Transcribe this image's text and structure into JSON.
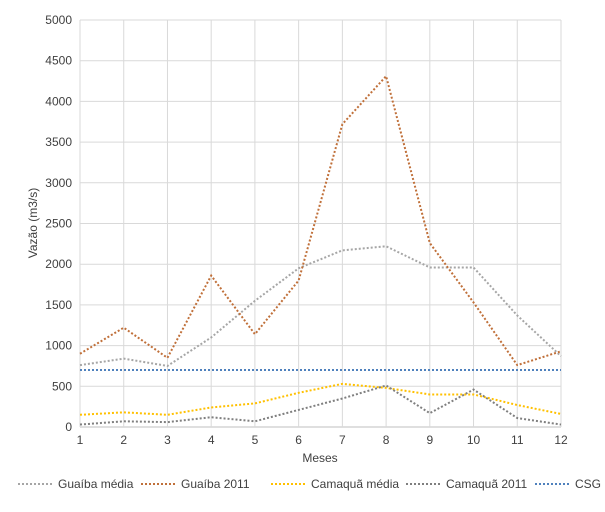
{
  "chart_data": {
    "type": "line",
    "xlabel": "Meses",
    "ylabel": "Vazão (m3/s)",
    "xlim": [
      1,
      12
    ],
    "ylim": [
      0,
      5000
    ],
    "y_ticks": [
      0,
      500,
      1000,
      1500,
      2000,
      2500,
      3000,
      3500,
      4000,
      4500,
      5000
    ],
    "x": [
      1,
      2,
      3,
      4,
      5,
      6,
      7,
      8,
      9,
      10,
      11,
      12
    ],
    "grid": true,
    "legend_position": "bottom",
    "series": [
      {
        "name": "Guaíba média",
        "color": "#a6a6a6",
        "values": [
          760,
          840,
          750,
          1100,
          1550,
          1950,
          2170,
          2220,
          1960,
          1960,
          1370,
          870
        ]
      },
      {
        "name": "Guaíba 2011",
        "color": "#c0703a",
        "values": [
          900,
          1220,
          850,
          1860,
          1140,
          1800,
          3720,
          4310,
          2260,
          1530,
          760,
          930
        ]
      },
      {
        "name": "Camaquã média",
        "color": "#ffc000",
        "values": [
          150,
          180,
          150,
          240,
          290,
          420,
          530,
          480,
          400,
          400,
          270,
          160
        ]
      },
      {
        "name": "Camaquã 2011",
        "color": "#7f7f7f",
        "values": [
          30,
          70,
          60,
          120,
          70,
          210,
          350,
          510,
          170,
          460,
          110,
          30
        ]
      },
      {
        "name": "CSG",
        "color": "#4f81bd",
        "values": [
          700,
          700,
          700,
          700,
          700,
          700,
          700,
          700,
          700,
          700,
          700,
          700
        ]
      }
    ]
  }
}
